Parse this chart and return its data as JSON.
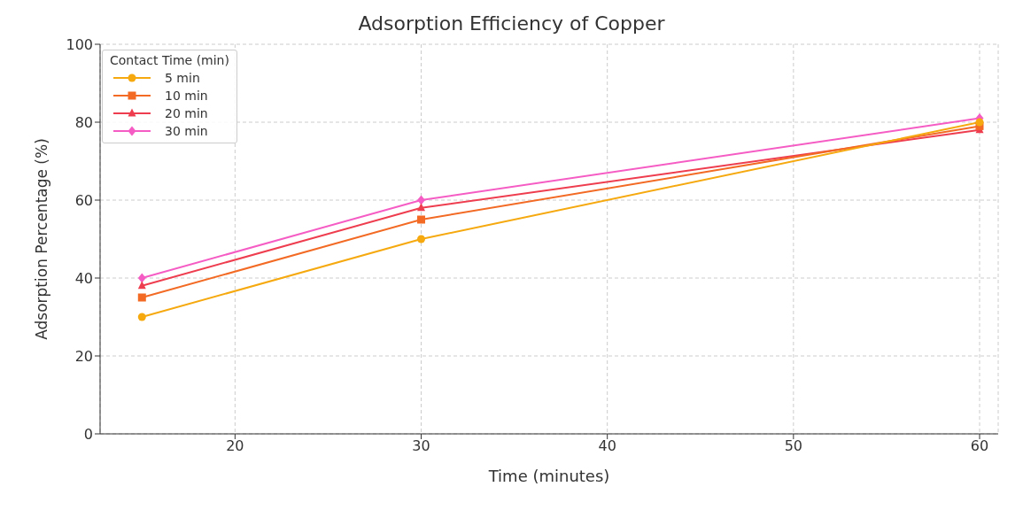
{
  "chart_data": {
    "type": "line",
    "title": "Adsorption Efficiency of Copper",
    "xlabel": "Time (minutes)",
    "ylabel": "Adsorption Percentage (%)",
    "legend_title": "Contact Time (min)",
    "x": [
      15,
      30,
      60
    ],
    "series": [
      {
        "name": "5 min",
        "color": "#f5a90f",
        "marker": "circle",
        "values": [
          30,
          50,
          80
        ]
      },
      {
        "name": "10 min",
        "color": "#f26a24",
        "marker": "square",
        "values": [
          35,
          55,
          79
        ]
      },
      {
        "name": "20 min",
        "color": "#ee3d4e",
        "marker": "triangle",
        "values": [
          38,
          58,
          78
        ]
      },
      {
        "name": "30 min",
        "color": "#f55cc4",
        "marker": "diamond",
        "values": [
          40,
          60,
          81
        ]
      }
    ],
    "xlim": [
      12.75,
      61
    ],
    "xticks": [
      20,
      30,
      40,
      50,
      60
    ],
    "ylim": [
      0,
      100
    ],
    "yticks": [
      0,
      20,
      40,
      60,
      80,
      100
    ],
    "grid": true,
    "legend": "top left",
    "line_style": "solid"
  }
}
